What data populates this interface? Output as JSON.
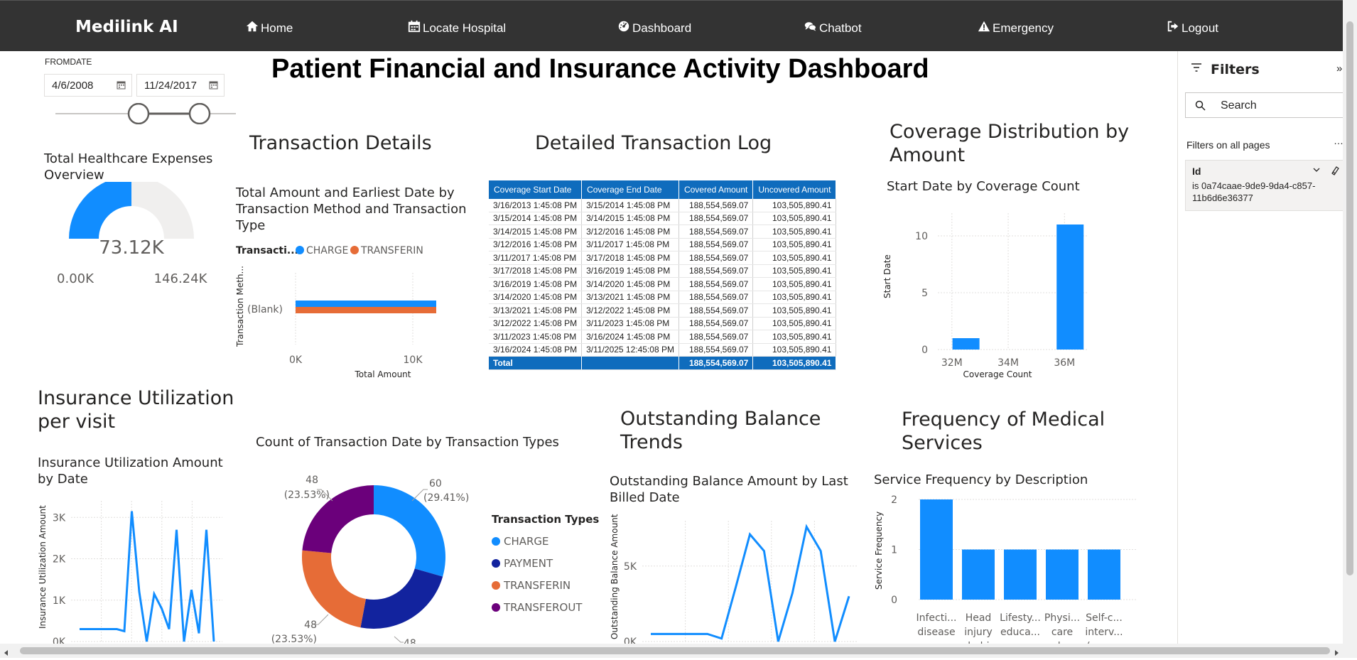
{
  "navbar": {
    "brand": "Medilink AI",
    "links": [
      {
        "label": "Home",
        "icon": "home-icon"
      },
      {
        "label": "Locate Hospital",
        "icon": "calendar-icon"
      },
      {
        "label": "Dashboard",
        "icon": "dashboard-icon"
      },
      {
        "label": "Chatbot",
        "icon": "chat-icon"
      },
      {
        "label": "Emergency",
        "icon": "warning-icon"
      },
      {
        "label": "Logout",
        "icon": "logout-icon"
      }
    ]
  },
  "page_title": "Patient Financial and Insurance Activity Dashboard",
  "date_slicer": {
    "label": "FROMDATE",
    "from": "4/6/2008",
    "to": "11/24/2017"
  },
  "gauge": {
    "title": "Total Healthcare Expenses Overview",
    "value_label": "73.12K",
    "min_label": "0.00K",
    "max_label": "146.24K",
    "fill_fraction": 0.5,
    "fill_color": "#118dff",
    "track_color": "#f0efee"
  },
  "sections": {
    "transaction_details": "Transaction Details",
    "transaction_log": "Detailed Transaction Log",
    "coverage_distribution": "Coverage Distribution by Amount",
    "insurance_utilization": "Insurance Utilization per visit",
    "outstanding_balance": "Outstanding Balance Trends",
    "medical_frequency": "Frequency of Medical Services"
  },
  "filters": {
    "title": "Filters",
    "search_placeholder": "Search",
    "filters_on_all_pages": "Filters on all pages",
    "card_field": "Id",
    "card_value": "is 0a74caae-9de9-9da4-c857-11b6d6e36377"
  },
  "transaction_table": {
    "headers": [
      "Coverage Start Date",
      "Coverage End Date",
      "Covered Amount",
      "Uncovered Amount"
    ],
    "rows": [
      [
        "3/16/2013 1:45:08 PM",
        "3/15/2014 1:45:08 PM",
        "188,554,569.07",
        "103,505,890.41"
      ],
      [
        "3/15/2014 1:45:08 PM",
        "3/14/2015 1:45:08 PM",
        "188,554,569.07",
        "103,505,890.41"
      ],
      [
        "3/14/2015 1:45:08 PM",
        "3/12/2016 1:45:08 PM",
        "188,554,569.07",
        "103,505,890.41"
      ],
      [
        "3/12/2016 1:45:08 PM",
        "3/11/2017 1:45:08 PM",
        "188,554,569.07",
        "103,505,890.41"
      ],
      [
        "3/11/2017 1:45:08 PM",
        "3/17/2018 1:45:08 PM",
        "188,554,569.07",
        "103,505,890.41"
      ],
      [
        "3/17/2018 1:45:08 PM",
        "3/16/2019 1:45:08 PM",
        "188,554,569.07",
        "103,505,890.41"
      ],
      [
        "3/16/2019 1:45:08 PM",
        "3/14/2020 1:45:08 PM",
        "188,554,569.07",
        "103,505,890.41"
      ],
      [
        "3/14/2020 1:45:08 PM",
        "3/13/2021 1:45:08 PM",
        "188,554,569.07",
        "103,505,890.41"
      ],
      [
        "3/13/2021 1:45:08 PM",
        "3/12/2022 1:45:08 PM",
        "188,554,569.07",
        "103,505,890.41"
      ],
      [
        "3/12/2022 1:45:08 PM",
        "3/11/2023 1:45:08 PM",
        "188,554,569.07",
        "103,505,890.41"
      ],
      [
        "3/11/2023 1:45:08 PM",
        "3/16/2024 1:45:08 PM",
        "188,554,569.07",
        "103,505,890.41"
      ],
      [
        "3/16/2024 1:45:08 PM",
        "3/11/2025 12:45:08 PM",
        "188,554,569.07",
        "103,505,890.41"
      ]
    ],
    "total": [
      "Total",
      "",
      "188,554,569.07",
      "103,505,890.41"
    ]
  },
  "chart_data": [
    {
      "id": "transaction_amount",
      "type": "bar",
      "orientation": "horizontal",
      "title": "Total Amount and Earliest Date by Transaction Method and Transaction Type",
      "legend_title": "Transacti...",
      "categories": [
        "(Blank)"
      ],
      "series": [
        {
          "name": "CHARGE",
          "values": [
            12000
          ],
          "color": "#118dff"
        },
        {
          "name": "TRANSFERIN",
          "values": [
            12000
          ],
          "color": "#e66c37"
        }
      ],
      "xlabel": "Total Amount",
      "ylabel": "Transaction Meth...",
      "xticks": [
        "0K",
        "10K"
      ],
      "xlim": [
        0,
        12000
      ]
    },
    {
      "id": "coverage_count",
      "type": "bar",
      "title": "Start Date by Coverage Count",
      "x": [
        32.5,
        36.2
      ],
      "values": [
        1,
        11
      ],
      "xticks": [
        "32M",
        "34M",
        "36M"
      ],
      "yticks": [
        "0",
        "5",
        "10"
      ],
      "xlim": [
        31.5,
        36.8
      ],
      "ylim": [
        0,
        12
      ],
      "xlabel": "Coverage Count",
      "ylabel": "Start Date",
      "grid": true
    },
    {
      "id": "insurance_utilization",
      "type": "line",
      "title": "Insurance Utilization Amount by Date",
      "ylabel": "Insurance Utilization Amount",
      "yticks": [
        "0K",
        "1K",
        "2K",
        "3K"
      ],
      "ylim": [
        0,
        3400
      ],
      "values": [
        300,
        300,
        300,
        300,
        300,
        300,
        250,
        3150,
        1200,
        0,
        1150,
        800,
        300,
        2700,
        0,
        1250,
        200,
        2700,
        0
      ],
      "grid": true
    },
    {
      "id": "transaction_types",
      "type": "pie",
      "donut": true,
      "title": "Count of Transaction Date by Transaction Types",
      "legend_title": "Transaction Types",
      "labels": [
        "CHARGE",
        "PAYMENT",
        "TRANSFERIN",
        "TRANSFEROUT"
      ],
      "values": [
        60,
        48,
        48,
        48
      ],
      "value_labels": [
        "60",
        "48",
        "48",
        "48"
      ],
      "percent_labels": [
        "(29.41%)",
        "(23.53%)",
        "(23.53%)",
        "(23.53%)"
      ],
      "colors": [
        "#118dff",
        "#12239e",
        "#e66c37",
        "#6b007b"
      ],
      "legend_placement": "right"
    },
    {
      "id": "outstanding_balance",
      "type": "line",
      "title": "Outstanding Balance Amount by Last Billed Date",
      "ylabel": "Outstanding Balance Amount",
      "yticks": [
        "0K",
        "5K"
      ],
      "ylim": [
        0,
        8000
      ],
      "values": [
        500,
        500,
        500,
        500,
        500,
        200,
        3600,
        7100,
        6000,
        0,
        3200,
        7600,
        6000,
        0,
        3000
      ],
      "grid": true
    },
    {
      "id": "service_frequency",
      "type": "bar",
      "title": "Service Frequency by Description",
      "categories": [
        "Infecti... disease care p...",
        "Head injury rehabi...",
        "Lifesty... educa... regar...",
        "Physi... care plan (...",
        "Self-c... interv... (proc..."
      ],
      "values": [
        2,
        1,
        1,
        1,
        1
      ],
      "yticks": [
        "0",
        "1",
        "2"
      ],
      "ylim": [
        0,
        2
      ],
      "ylabel": "Service Frequency",
      "grid": true
    }
  ]
}
